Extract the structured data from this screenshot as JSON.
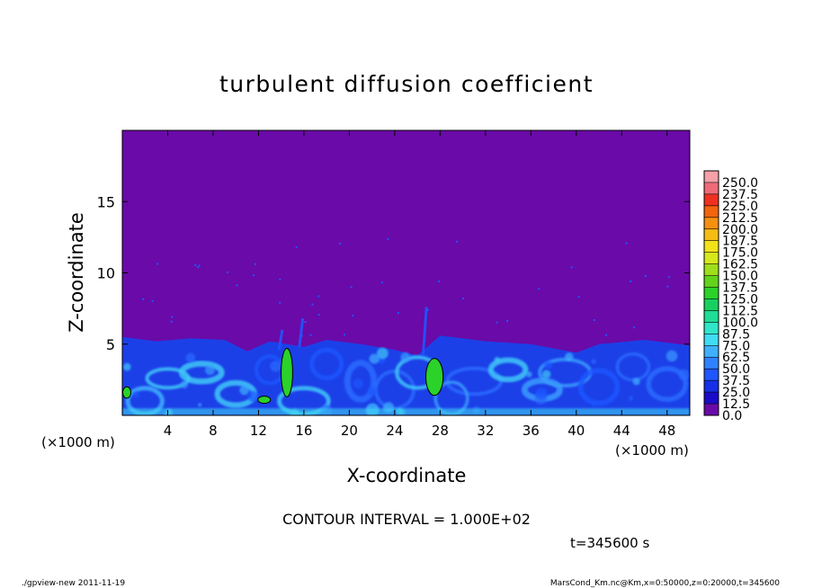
{
  "chart_data": {
    "type": "heatmap",
    "title": "turbulent diffusion coefficient",
    "xlabel": "X-coordinate",
    "ylabel": "Z-coordinate",
    "x_unit": "(×1000 m)",
    "y_unit": "(×1000 m)",
    "xlim": [
      0,
      50
    ],
    "ylim": [
      0,
      20
    ],
    "x_ticks": [
      4,
      8,
      12,
      16,
      20,
      24,
      28,
      32,
      36,
      40,
      44,
      48
    ],
    "y_ticks": [
      5,
      10,
      15
    ],
    "colorbar": {
      "levels": [
        "0.0",
        "12.5",
        "25.0",
        "37.5",
        "50.0",
        "62.5",
        "75.0",
        "87.5",
        "100.0",
        "112.5",
        "125.0",
        "137.5",
        "150.0",
        "162.5",
        "175.0",
        "187.5",
        "200.0",
        "212.5",
        "225.0",
        "237.5",
        "250.0"
      ],
      "colors": [
        "#6a0aa8",
        "#1a0cc8",
        "#1530e6",
        "#1f56ff",
        "#2f82ff",
        "#3fb0ff",
        "#40dcf4",
        "#30e6c8",
        "#1fdc96",
        "#18d060",
        "#2ad22a",
        "#62d41c",
        "#9ede1a",
        "#d6e81c",
        "#f2e21a",
        "#f6bc16",
        "#f59012",
        "#f2640e",
        "#ef3020",
        "#f06a78",
        "#f6a0a8"
      ]
    },
    "contour_interval": "CONTOUR INTERVAL = 1.000E+02",
    "contour_level": 100,
    "time_label": "t=345600 s",
    "field": {
      "description": "Background near 0 above ~5 km; turbulent layer 0-5.5 km with values ~25-87; green (>=100) patches",
      "boundary_layer_top_profile": [
        {
          "x": 0,
          "z": 5.5
        },
        {
          "x": 3,
          "z": 5.2
        },
        {
          "x": 6,
          "z": 5.4
        },
        {
          "x": 9,
          "z": 5.3
        },
        {
          "x": 11,
          "z": 4.5
        },
        {
          "x": 13,
          "z": 5.2
        },
        {
          "x": 16,
          "z": 4.8
        },
        {
          "x": 18,
          "z": 5.3
        },
        {
          "x": 21,
          "z": 5.0
        },
        {
          "x": 24,
          "z": 4.6
        },
        {
          "x": 26,
          "z": 4.2
        },
        {
          "x": 28,
          "z": 5.6
        },
        {
          "x": 32,
          "z": 5.2
        },
        {
          "x": 36,
          "z": 5.0
        },
        {
          "x": 40,
          "z": 4.4
        },
        {
          "x": 42,
          "z": 5.0
        },
        {
          "x": 46,
          "z": 5.3
        },
        {
          "x": 50,
          "z": 4.9
        }
      ],
      "contour_patches": [
        {
          "x": 14.5,
          "z": 3.0,
          "w": 0.7,
          "h": 3.4
        },
        {
          "x": 27.5,
          "z": 2.7,
          "w": 1.2,
          "h": 2.6
        },
        {
          "x": 12.5,
          "z": 1.1,
          "w": 0.8,
          "h": 0.5
        },
        {
          "x": 0.4,
          "z": 1.6,
          "w": 0.4,
          "h": 0.8
        }
      ]
    }
  },
  "footer": {
    "left": "./gpview-new 2011-11-19",
    "right": "MarsCond_Km.nc@Km,x=0:50000,z=0:20000,t=345600"
  }
}
